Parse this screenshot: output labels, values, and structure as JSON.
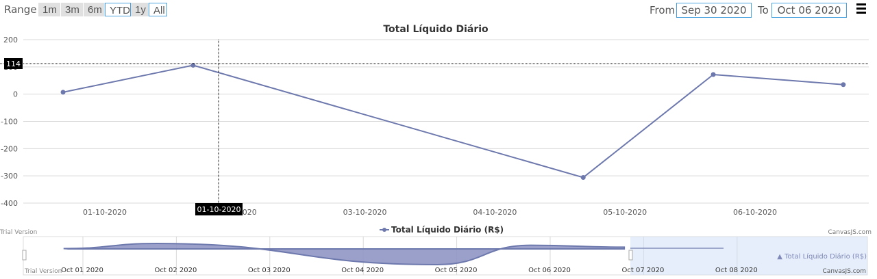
{
  "toolbar": {
    "range_label": "Range",
    "range_buttons": [
      "1m",
      "3m",
      "6m",
      "YTD",
      "1y",
      "All"
    ],
    "active_buttons": [
      "YTD",
      "All"
    ],
    "from_label": "From",
    "from_value": "Sep 30 2020",
    "to_label": "To",
    "to_value": "Oct 06 2020"
  },
  "colors": {
    "series": "#6d78ad",
    "navigator_fill": "#8f96c4",
    "accent": "#4aa3df",
    "tooltip_bg": "#000000"
  },
  "chart_data": {
    "type": "line",
    "title": "Total Líquido Diário",
    "legend": {
      "label": "Total Líquido Diário (R$)",
      "placement": "bottom"
    },
    "x": [
      "01-10-2020",
      "02-10-2020",
      "04-10-2020",
      "05-10-2020",
      "06-10-2020"
    ],
    "x_days": [
      0.8,
      1.8,
      4.8,
      5.8,
      6.8
    ],
    "series": [
      {
        "name": "Total Líquido Diário (R$)",
        "values": [
          7,
          106,
          -306,
          72,
          35
        ]
      }
    ],
    "ylim": [
      -400,
      200
    ],
    "yticks": [
      200,
      100,
      0,
      -100,
      -200,
      -300,
      -400
    ],
    "ytick_labels": [
      "200",
      "100",
      "0",
      "-100",
      "-200",
      "-300",
      "-400"
    ],
    "xticks": [
      "01-10-2020",
      "02-10-2020",
      "03-10-2020",
      "04-10-2020",
      "05-10-2020",
      "06-10-2020"
    ],
    "grid": true,
    "crosshair": {
      "x_label": "01-10-2020",
      "y_label": "114"
    }
  },
  "navigator": {
    "ticks": [
      "Oct 01 2020",
      "Oct 02 2020",
      "Oct 03 2020",
      "Oct 04 2020",
      "Oct 05 2020",
      "Oct 06 2020",
      "Oct 07 2020",
      "Oct 08 2020"
    ],
    "watermark_left": "Trial Version",
    "watermark_right": "CanvasJS.com",
    "ghost_legend": "▲ Total Líquido Diário (R$)"
  }
}
